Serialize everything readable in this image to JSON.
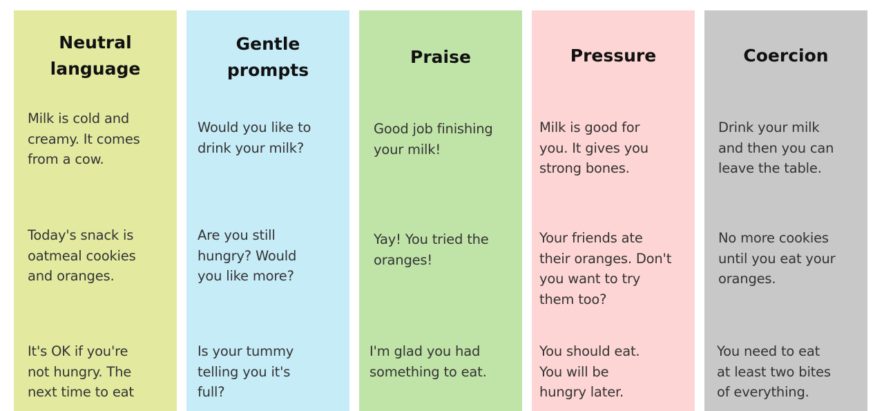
{
  "columns": [
    {
      "title": "Neutral\nlanguage",
      "color": "#e3eaa0",
      "items": [
        "Milk is cold and\ncreamy. It comes\nfrom a cow.",
        "Today's snack is\noatmeal cookies\nand oranges.",
        "It's OK if you're\nnot hungry. The\nnext time to eat"
      ]
    },
    {
      "title": "Gentle\nprompts",
      "color": "#c6ecf8",
      "items": [
        "Would you like to\ndrink your milk?",
        "Are you still\nhungry? Would\nyou like more?",
        "Is your tummy\ntelling you it's\nfull?"
      ]
    },
    {
      "title": "Praise",
      "color": "#c0e4a8",
      "items": [
        "Good job finishing\nyour milk!",
        "Yay! You tried the\noranges!",
        "I'm glad you had\nsomething to eat."
      ]
    },
    {
      "title": "Pressure",
      "color": "#fdd5d4",
      "items": [
        "Milk is good for\nyou. It gives you\nstrong bones.",
        "Your friends ate\ntheir oranges. Don't\nyou want to try\nthem too?",
        "You should eat.\nYou will be\nhungry later."
      ]
    },
    {
      "title": "Coercion",
      "color": "#c8c8c8",
      "items": [
        "Drink your milk\nand then you can\nleave the table.",
        "No more cookies\nuntil you eat your\noranges.",
        "You need to eat\nat least two bites\nof everything."
      ]
    }
  ]
}
